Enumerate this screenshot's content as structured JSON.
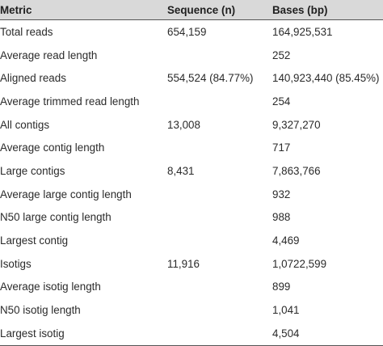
{
  "table": {
    "headers": {
      "metric": "Metric",
      "sequence": "Sequence (n)",
      "bases": "Bases (bp)"
    },
    "rows": [
      {
        "metric": "Total reads",
        "sequence": "654,159",
        "bases": "164,925,531"
      },
      {
        "metric": "Average read length",
        "sequence": "",
        "bases": "252"
      },
      {
        "metric": "Aligned reads",
        "sequence": "554,524 (84.77%)",
        "bases": "140,923,440 (85.45%)"
      },
      {
        "metric": "Average trimmed read length",
        "sequence": "",
        "bases": "254"
      },
      {
        "metric": "All contigs",
        "sequence": "13,008",
        "bases": "9,327,270"
      },
      {
        "metric": "Average contig length",
        "sequence": "",
        "bases": "717"
      },
      {
        "metric": "Large contigs",
        "sequence": "8,431",
        "bases": "7,863,766"
      },
      {
        "metric": "Average large contig length",
        "sequence": "",
        "bases": "932"
      },
      {
        "metric": "N50 large contig length",
        "sequence": "",
        "bases": "988"
      },
      {
        "metric": "Largest contig",
        "sequence": "",
        "bases": "4,469"
      },
      {
        "metric": "Isotigs",
        "sequence": "11,916",
        "bases": "1,0722,599"
      },
      {
        "metric": "Average isotig length",
        "sequence": "",
        "bases": "899"
      },
      {
        "metric": "N50 isotig length",
        "sequence": "",
        "bases": "1,041"
      },
      {
        "metric": "Largest isotig",
        "sequence": "",
        "bases": "4,504"
      }
    ]
  }
}
